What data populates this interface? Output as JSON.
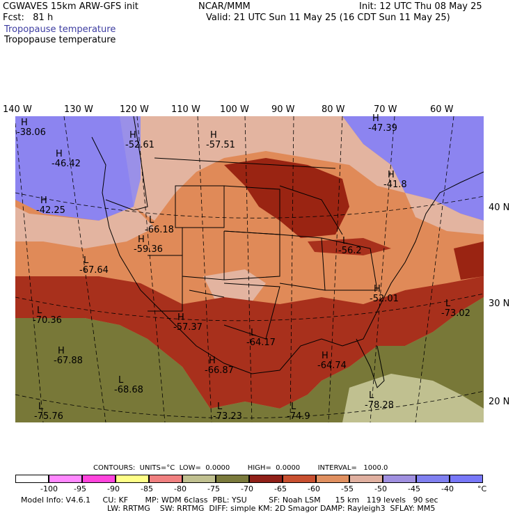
{
  "header": {
    "model": "CGWAVES 15km ARW-GFS init",
    "forecast": "Fcst:   81 h",
    "field_blue": "Tropopause temperature",
    "field_black": "Tropopause temperature",
    "center": "NCAR/MMM",
    "init": "Init: 12 UTC Thu 08 May 25",
    "valid": "Valid: 21 UTC Sun 11 May 25 (16 CDT Sun 11 May 25)"
  },
  "lon_labels": [
    "140 W",
    "130 W",
    "120 W",
    "110 W",
    "100 W",
    "90 W",
    "80 W",
    "70 W",
    "60 W"
  ],
  "lat_labels": [
    "40 N",
    "30 N",
    "20 N"
  ],
  "map_labels": [
    {
      "sym": "H",
      "value": "-38.06"
    },
    {
      "sym": "H",
      "value": "-46.42"
    },
    {
      "sym": "H",
      "value": "-42.25"
    },
    {
      "sym": "H",
      "value": "-52.61"
    },
    {
      "sym": "H",
      "value": "-57.51"
    },
    {
      "sym": "H",
      "value": "-47.39"
    },
    {
      "sym": "H",
      "value": "-41.8"
    },
    {
      "sym": "L",
      "value": "-66.18"
    },
    {
      "sym": "H",
      "value": "-59.36"
    },
    {
      "sym": "L",
      "value": "-67.64"
    },
    {
      "sym": "L",
      "value": "-70.36"
    },
    {
      "sym": "H",
      "value": "-67.88"
    },
    {
      "sym": "H",
      "value": "-57.37"
    },
    {
      "sym": "L",
      "value": "-64.17"
    },
    {
      "sym": "H",
      "value": "-66.87"
    },
    {
      "sym": "L",
      "value": "-68.68"
    },
    {
      "sym": "L",
      "value": "-75.76"
    },
    {
      "sym": "L",
      "value": "-73.23"
    },
    {
      "sym": "L",
      "value": "-74.9"
    },
    {
      "sym": "H",
      "value": "-64.74"
    },
    {
      "sym": "L",
      "value": "-78.28"
    },
    {
      "sym": "H",
      "value": "-52.01"
    },
    {
      "sym": "L",
      "value": "-73.02"
    },
    {
      "sym": "L",
      "value": "-56.2"
    }
  ],
  "contours": {
    "text": "CONTOURS:  UNITS=°C  LOW=  0.0000        HIGH=  0.0000        INTERVAL=   1000.0"
  },
  "colorbar": {
    "labels": [
      "-100",
      "-95",
      "-90",
      "-85",
      "-80",
      "-75",
      "-70",
      "-65",
      "-60",
      "-55",
      "-50",
      "-45",
      "-40"
    ],
    "unit": "°C",
    "colors": [
      "#ffffff",
      "#ff88ff",
      "#ff44dd",
      "#ffff88",
      "#f08080",
      "#c0c090",
      "#7a7a3c",
      "#902018",
      "#c85030",
      "#e09060",
      "#e0b0a0",
      "#a090e0",
      "#8080f0",
      "#7878f8"
    ]
  },
  "footer": {
    "line1": "Model Info: V4.6.1     CU: KF       MP: WDM 6class  PBL: YSU         SF: Noah LSM      15 km   119 levels   90 sec",
    "line2": "LW: RRTMG    SW: RRTMG  DIFF: simple KM: 2D Smagor DAMP: Rayleigh3  SFLAY: MM5"
  },
  "field_colors": {
    "purple": "#9a90e8",
    "peach": "#e3b4a0",
    "orange": "#e08a58",
    "brick": "#a8301c",
    "darkred": "#9a2412",
    "olive": "#787838",
    "khaki": "#c0c090"
  }
}
